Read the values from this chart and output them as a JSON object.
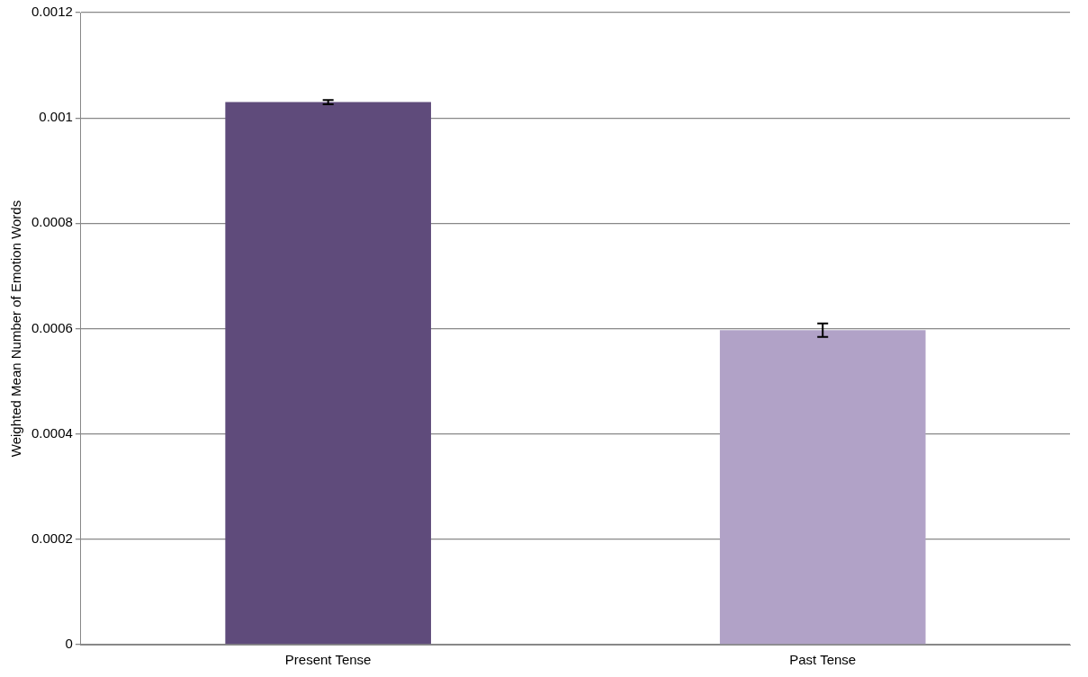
{
  "chart_data": {
    "type": "bar",
    "ylabel": "Weighted Mean Number of Emotion Words",
    "categories": [
      "Present Tense",
      "Past Tense"
    ],
    "values": [
      0.00103,
      0.000597
    ],
    "colors": [
      "#5f4b7b",
      "#b1a2c7"
    ],
    "errors": [
      4e-06,
      1.3e-05
    ],
    "ylim": [
      0,
      0.0012
    ],
    "yticks": [
      0,
      0.0002,
      0.0004,
      0.0006,
      0.0008,
      0.001,
      0.0012
    ],
    "grid": "y",
    "legend": false
  }
}
